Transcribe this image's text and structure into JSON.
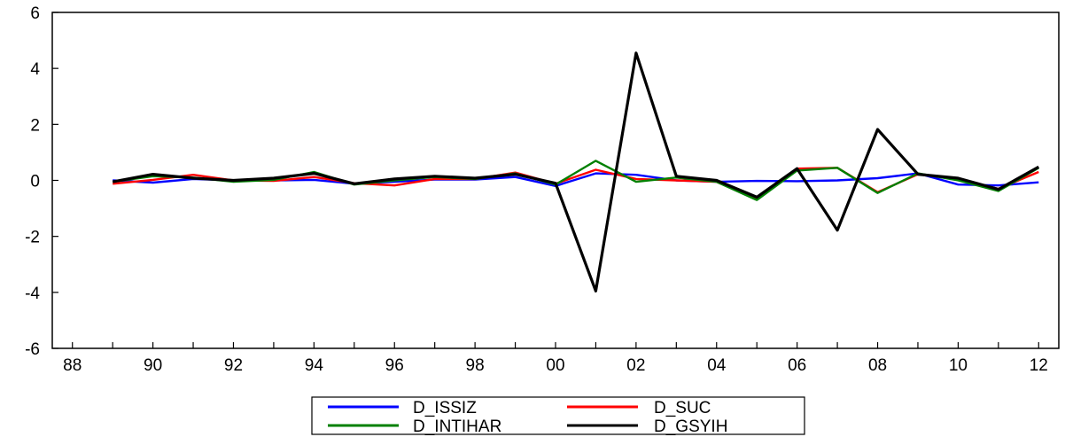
{
  "chart_data": {
    "type": "line",
    "title": "",
    "xlabel": "",
    "ylabel": "",
    "x": [
      1989,
      1990,
      1991,
      1992,
      1993,
      1994,
      1995,
      1996,
      1997,
      1998,
      1999,
      2000,
      2001,
      2002,
      2003,
      2004,
      2005,
      2006,
      2007,
      2008,
      2009,
      2010,
      2011,
      2012
    ],
    "xlim": [
      1987.5,
      2012.5
    ],
    "ylim": [
      -6,
      6
    ],
    "y_ticks": [
      -6,
      -4,
      -2,
      0,
      2,
      4,
      6
    ],
    "y_tick_labels": [
      "-6",
      "-4",
      "-2",
      "0",
      "2",
      "4",
      "6"
    ],
    "x_ticks": [
      1988,
      1990,
      1992,
      1994,
      1996,
      1998,
      2000,
      2002,
      2004,
      2006,
      2008,
      2010,
      2012
    ],
    "x_tick_labels": [
      "88",
      "90",
      "92",
      "94",
      "96",
      "98",
      "00",
      "02",
      "04",
      "06",
      "08",
      "10",
      "12"
    ],
    "grid": false,
    "legend_position": "bottom-center",
    "series": [
      {
        "name": "D_ISSIZ",
        "color": "#0000ff",
        "values": [
          0.0,
          -0.08,
          0.05,
          0.0,
          0.0,
          0.02,
          -0.12,
          -0.05,
          0.03,
          0.03,
          0.12,
          -0.2,
          0.25,
          0.2,
          0.0,
          -0.05,
          -0.02,
          -0.03,
          0.0,
          0.08,
          0.25,
          -0.15,
          -0.18,
          -0.07
        ]
      },
      {
        "name": "D_SUC",
        "color": "#ff0000",
        "values": [
          -0.12,
          0.02,
          0.2,
          0.0,
          -0.02,
          0.12,
          -0.1,
          -0.18,
          0.05,
          0.05,
          0.28,
          -0.12,
          0.38,
          0.05,
          0.0,
          -0.05,
          -0.65,
          0.42,
          0.45,
          -0.42,
          0.22,
          0.05,
          -0.3,
          0.3
        ]
      },
      {
        "name": "D_INTIHAR",
        "color": "#008000",
        "values": [
          -0.05,
          0.15,
          0.1,
          -0.05,
          0.02,
          0.3,
          -0.15,
          0.0,
          0.12,
          0.05,
          0.25,
          -0.15,
          0.7,
          -0.05,
          0.1,
          -0.05,
          -0.7,
          0.35,
          0.45,
          -0.45,
          0.25,
          0.0,
          -0.38,
          0.45
        ]
      },
      {
        "name": "D_GSYIH",
        "color": "#000000",
        "values": [
          -0.05,
          0.22,
          0.08,
          0.0,
          0.08,
          0.25,
          -0.12,
          0.05,
          0.15,
          0.08,
          0.22,
          -0.1,
          -3.95,
          4.55,
          0.15,
          0.0,
          -0.6,
          0.42,
          -1.78,
          1.82,
          0.22,
          0.08,
          -0.32,
          0.48
        ]
      }
    ]
  }
}
